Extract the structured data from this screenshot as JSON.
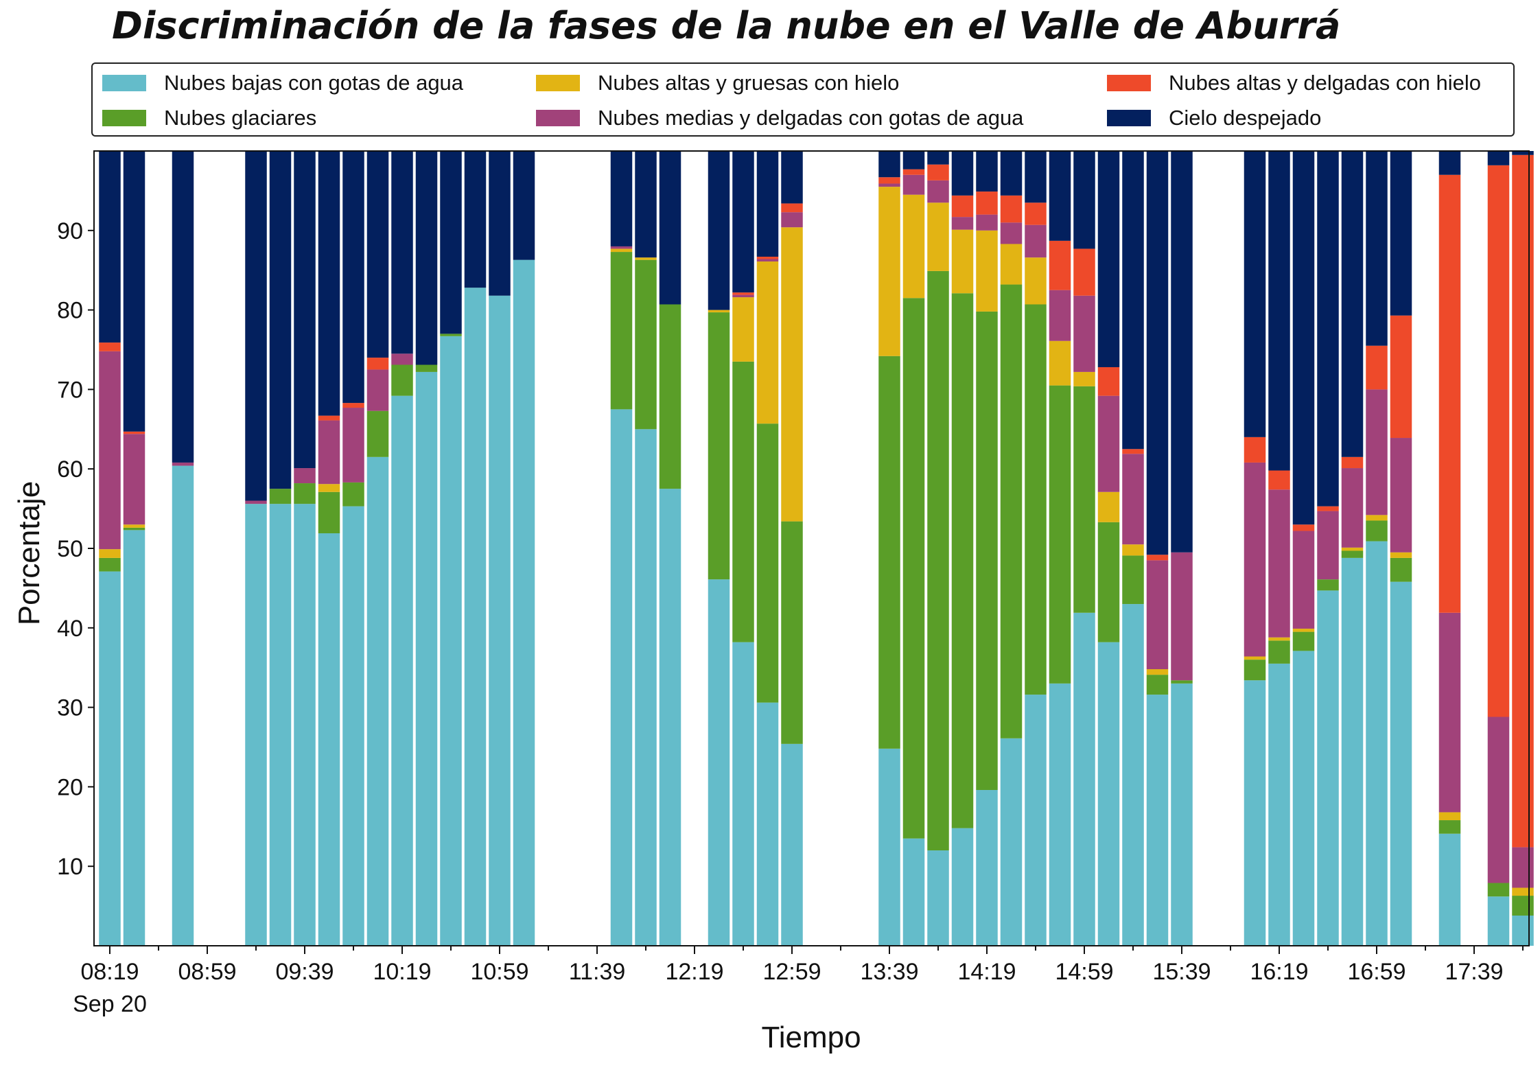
{
  "chart_data": {
    "type": "bar",
    "stacked": true,
    "title": "Discriminación de la fases de la nube en el Valle de Aburrá",
    "xlabel": "Tiempo",
    "ylabel": "Porcentaje",
    "ylim": [
      0,
      100
    ],
    "yticks": [
      10,
      20,
      30,
      40,
      50,
      60,
      70,
      80,
      90
    ],
    "xticks": [
      {
        "label": "08:19",
        "sublabel": "Sep 20",
        "slot": 0
      },
      {
        "label": "08:59",
        "slot": 4
      },
      {
        "label": "09:39",
        "slot": 8
      },
      {
        "label": "10:19",
        "slot": 12
      },
      {
        "label": "10:59",
        "slot": 16
      },
      {
        "label": "11:39",
        "slot": 20
      },
      {
        "label": "12:19",
        "slot": 24
      },
      {
        "label": "12:59",
        "slot": 28
      },
      {
        "label": "13:39",
        "slot": 32
      },
      {
        "label": "14:19",
        "slot": 36
      },
      {
        "label": "14:59",
        "slot": 40
      },
      {
        "label": "15:39",
        "slot": 44
      },
      {
        "label": "16:19",
        "slot": 48
      },
      {
        "label": "16:59",
        "slot": 52
      },
      {
        "label": "17:39",
        "slot": 56
      }
    ],
    "time_step_minutes": 10,
    "slots_total": 59,
    "series": [
      {
        "name": "Nubes bajas con gotas de agua",
        "color": "#64bcca"
      },
      {
        "name": "Nubes glaciares",
        "color": "#5a9e28"
      },
      {
        "name": "Nubes altas y gruesas con hielo",
        "color": "#e2b414"
      },
      {
        "name": "Nubes medias y delgadas con gotas de agua",
        "color": "#a1427a"
      },
      {
        "name": "Nubes altas y delgadas con hielo",
        "color": "#ee4a2a"
      },
      {
        "name": "Cielo despejado",
        "color": "#03205e"
      }
    ],
    "bars": [
      {
        "slot": 0,
        "values": [
          47.1,
          1.7,
          1.1,
          24.9,
          1.1,
          24.1
        ]
      },
      {
        "slot": 1,
        "values": [
          52.3,
          0.3,
          0.4,
          11.4,
          0.3,
          35.3
        ]
      },
      {
        "slot": 3,
        "values": [
          60.4,
          0,
          0,
          0.4,
          0,
          39.2
        ]
      },
      {
        "slot": 6,
        "values": [
          55.6,
          0,
          0,
          0.4,
          0,
          44.0
        ]
      },
      {
        "slot": 7,
        "values": [
          55.6,
          1.9,
          0,
          0,
          0,
          42.5
        ]
      },
      {
        "slot": 8,
        "values": [
          55.6,
          2.6,
          0,
          1.9,
          0,
          39.9
        ]
      },
      {
        "slot": 9,
        "values": [
          51.9,
          5.2,
          1.0,
          8.0,
          0.6,
          33.3
        ]
      },
      {
        "slot": 10,
        "values": [
          55.3,
          3.0,
          0,
          9.4,
          0.6,
          31.7
        ]
      },
      {
        "slot": 11,
        "values": [
          61.5,
          5.8,
          0,
          5.2,
          1.5,
          26.0
        ]
      },
      {
        "slot": 12,
        "values": [
          69.2,
          3.9,
          0,
          1.4,
          0,
          25.5
        ]
      },
      {
        "slot": 13,
        "values": [
          72.2,
          0.9,
          0,
          0,
          0,
          26.9
        ]
      },
      {
        "slot": 14,
        "values": [
          76.7,
          0.3,
          0,
          0,
          0,
          23.0
        ]
      },
      {
        "slot": 15,
        "values": [
          82.8,
          0,
          0,
          0,
          0,
          17.2
        ]
      },
      {
        "slot": 16,
        "values": [
          81.8,
          0,
          0,
          0,
          0,
          18.2
        ]
      },
      {
        "slot": 17,
        "values": [
          86.3,
          0,
          0,
          0,
          0,
          13.7
        ]
      },
      {
        "slot": 21,
        "values": [
          67.5,
          19.8,
          0.4,
          0.3,
          0,
          12.0
        ]
      },
      {
        "slot": 22,
        "values": [
          65.0,
          21.3,
          0.3,
          0,
          0,
          13.4
        ]
      },
      {
        "slot": 23,
        "values": [
          57.5,
          23.2,
          0,
          0,
          0,
          19.3
        ]
      },
      {
        "slot": 25,
        "values": [
          46.1,
          33.6,
          0.3,
          0,
          0,
          20.0
        ]
      },
      {
        "slot": 26,
        "values": [
          38.2,
          35.3,
          8.1,
          0.3,
          0.3,
          17.8
        ]
      },
      {
        "slot": 27,
        "values": [
          30.6,
          35.1,
          20.4,
          0.3,
          0.3,
          13.3
        ]
      },
      {
        "slot": 28,
        "values": [
          25.4,
          28.0,
          37.0,
          1.9,
          1.1,
          6.6
        ]
      },
      {
        "slot": 32,
        "values": [
          24.8,
          49.4,
          21.3,
          0.4,
          0.8,
          3.3
        ]
      },
      {
        "slot": 33,
        "values": [
          13.5,
          68.0,
          13.0,
          2.5,
          0.7,
          2.3
        ]
      },
      {
        "slot": 34,
        "values": [
          12.0,
          72.9,
          8.6,
          2.8,
          2.0,
          1.7
        ]
      },
      {
        "slot": 35,
        "values": [
          14.8,
          67.3,
          8.0,
          1.6,
          2.7,
          5.6
        ]
      },
      {
        "slot": 36,
        "values": [
          19.6,
          60.2,
          10.2,
          2.0,
          2.9,
          5.1
        ]
      },
      {
        "slot": 37,
        "values": [
          26.1,
          57.1,
          5.1,
          2.7,
          3.4,
          5.6
        ]
      },
      {
        "slot": 38,
        "values": [
          31.6,
          49.1,
          5.9,
          4.1,
          2.8,
          6.5
        ]
      },
      {
        "slot": 39,
        "values": [
          33.0,
          37.5,
          5.6,
          6.4,
          6.2,
          11.3
        ]
      },
      {
        "slot": 40,
        "values": [
          41.9,
          28.5,
          1.8,
          9.6,
          5.9,
          12.3
        ]
      },
      {
        "slot": 41,
        "values": [
          38.2,
          15.1,
          3.8,
          12.1,
          3.6,
          27.2
        ]
      },
      {
        "slot": 42,
        "values": [
          43.0,
          6.1,
          1.4,
          11.4,
          0.6,
          37.5
        ]
      },
      {
        "slot": 43,
        "values": [
          31.6,
          2.5,
          0.7,
          13.7,
          0.7,
          50.8
        ]
      },
      {
        "slot": 44,
        "values": [
          33.0,
          0.4,
          0,
          16.1,
          0,
          50.5
        ]
      },
      {
        "slot": 47,
        "values": [
          33.4,
          2.6,
          0.4,
          24.4,
          3.2,
          36.0
        ]
      },
      {
        "slot": 48,
        "values": [
          35.5,
          2.9,
          0.4,
          18.6,
          2.4,
          40.2
        ]
      },
      {
        "slot": 49,
        "values": [
          37.1,
          2.4,
          0.4,
          12.3,
          0.8,
          47.0
        ]
      },
      {
        "slot": 50,
        "values": [
          44.7,
          1.4,
          0,
          8.6,
          0.6,
          44.7
        ]
      },
      {
        "slot": 51,
        "values": [
          48.8,
          0.9,
          0.4,
          10.0,
          1.4,
          38.5
        ]
      },
      {
        "slot": 52,
        "values": [
          50.9,
          2.6,
          0.7,
          15.8,
          5.5,
          24.5
        ]
      },
      {
        "slot": 53,
        "values": [
          45.8,
          3.0,
          0.7,
          14.4,
          15.4,
          20.7
        ]
      },
      {
        "slot": 55,
        "values": [
          14.1,
          1.7,
          1.0,
          25.1,
          55.1,
          3.0
        ]
      },
      {
        "slot": 57,
        "values": [
          6.2,
          1.7,
          0,
          20.9,
          69.4,
          1.8
        ]
      },
      {
        "slot": 58,
        "values": [
          3.8,
          2.5,
          1.0,
          5.1,
          87.1,
          0.5
        ]
      }
    ]
  }
}
